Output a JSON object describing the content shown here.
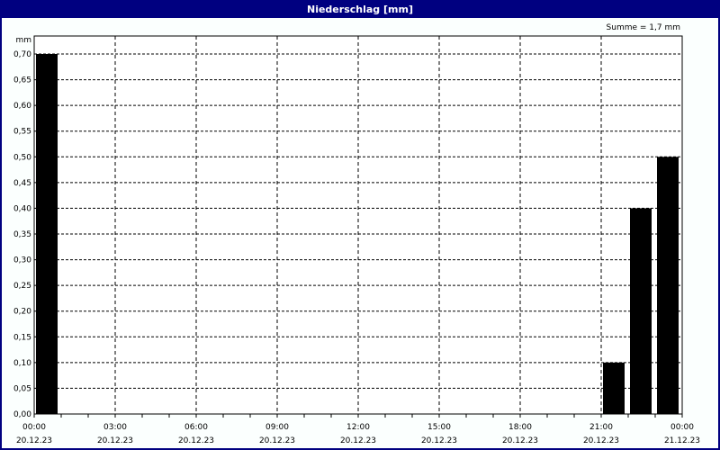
{
  "window": {
    "title": "Niederschlag [mm]"
  },
  "chart_data": {
    "type": "bar",
    "title": "Niederschlag [mm]",
    "ylabel": "mm",
    "annotation": "Summe = 1,7 mm",
    "ylim": [
      0,
      0.7
    ],
    "y_ticks": [
      "0,00",
      "0,05",
      "0,10",
      "0,15",
      "0,20",
      "0,25",
      "0,30",
      "0,35",
      "0,40",
      "0,45",
      "0,50",
      "0,55",
      "0,60",
      "0,65",
      "0,70"
    ],
    "x_range_hours": [
      0,
      24
    ],
    "x_ticks": [
      {
        "time": "00:00",
        "date": "20.12.23"
      },
      {
        "time": "03:00",
        "date": "20.12.23"
      },
      {
        "time": "06:00",
        "date": "20.12.23"
      },
      {
        "time": "09:00",
        "date": "20.12.23"
      },
      {
        "time": "12:00",
        "date": "20.12.23"
      },
      {
        "time": "15:00",
        "date": "20.12.23"
      },
      {
        "time": "18:00",
        "date": "20.12.23"
      },
      {
        "time": "21:00",
        "date": "20.12.23"
      },
      {
        "time": "00:00",
        "date": "21.12.23"
      }
    ],
    "bars": [
      {
        "start": "00:00",
        "value": 0.7
      },
      {
        "start": "21:00",
        "value": 0.1
      },
      {
        "start": "22:00",
        "value": 0.4
      },
      {
        "start": "23:00",
        "value": 0.5
      }
    ],
    "grid": true,
    "bar_color": "#000000"
  }
}
